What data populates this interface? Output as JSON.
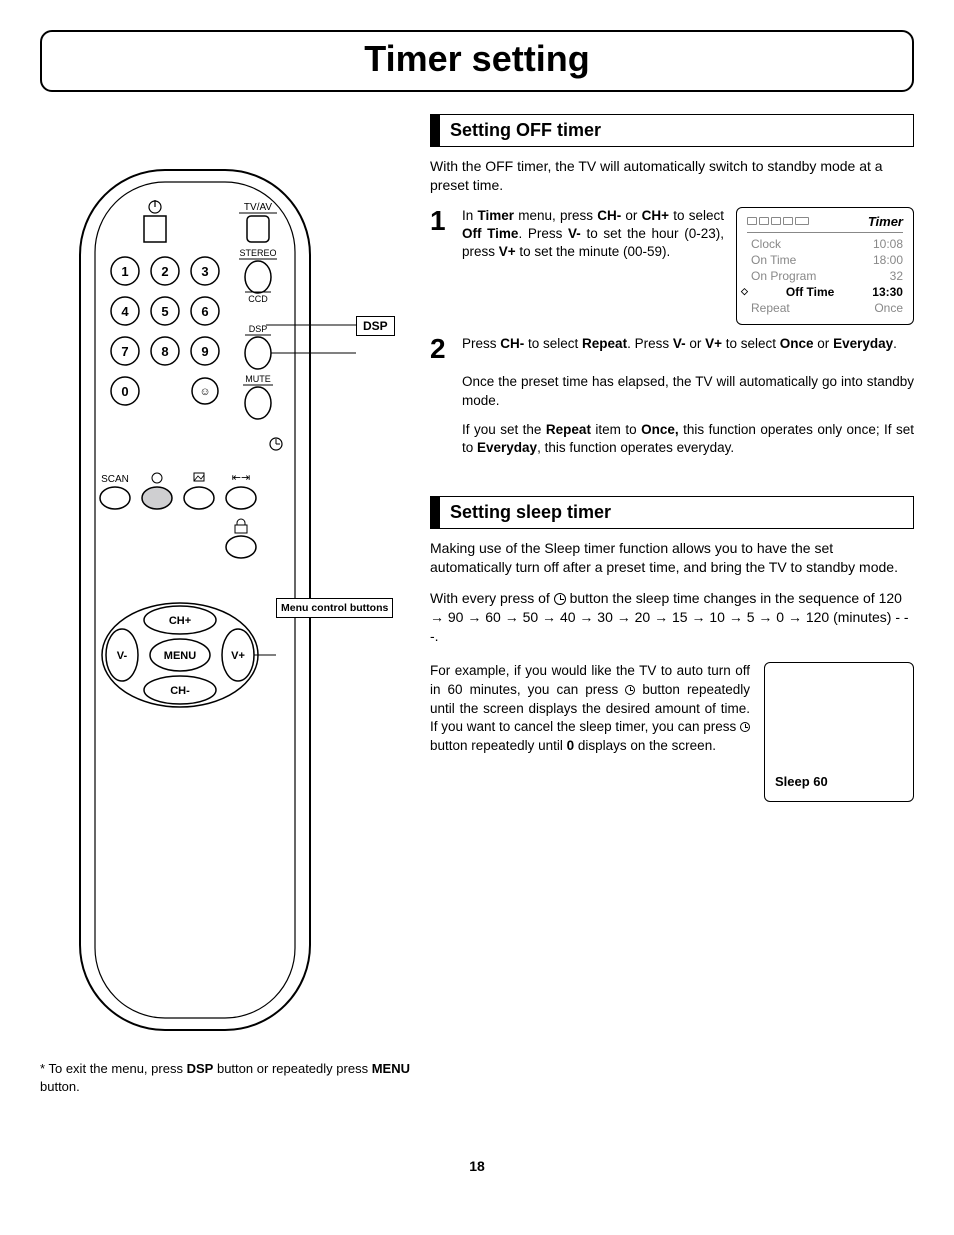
{
  "page_title": "Timer setting",
  "page_number": "18",
  "remote": {
    "labels": {
      "tv_av": "TV/AV",
      "stereo": "STEREO",
      "ccd": "CCD",
      "dsp": "DSP",
      "mute": "MUTE",
      "scan": "SCAN",
      "ch_plus": "CH+",
      "ch_minus": "CH-",
      "v_plus": "V+",
      "v_minus": "V-",
      "menu": "MENU"
    },
    "numbers": [
      "1",
      "2",
      "3",
      "4",
      "5",
      "6",
      "7",
      "8",
      "9",
      "0"
    ],
    "callouts": {
      "dsp": "DSP",
      "menu_controls": "Menu control buttons"
    }
  },
  "exit_note": {
    "prefix": "* To exit the menu, press ",
    "bold1": "DSP",
    "mid": " button or repeatedly press ",
    "bold2": "MENU",
    "suffix": " button."
  },
  "off_timer": {
    "heading": "Setting OFF timer",
    "intro": "With the OFF timer, the TV will automatically switch to standby mode at a preset time.",
    "step1_parts": [
      "In ",
      "Timer",
      " menu, press ",
      "CH-",
      " or ",
      "CH+",
      " to select ",
      "Off  Time",
      ".\nPress ",
      "V-",
      " to set the hour (0-23), press  ",
      "V+",
      " to set the minute (00-59)."
    ],
    "step2_parts": [
      "Press  ",
      "CH-",
      "  to select ",
      "Repeat",
      ".\nPress ",
      "V-",
      " or ",
      "V+",
      " to select ",
      "Once",
      " or ",
      "Everyday",
      "."
    ],
    "osd": {
      "title": "Timer",
      "rows": [
        {
          "label": "Clock",
          "value": "10:08",
          "selected": false
        },
        {
          "label": "On Time",
          "value": "18:00",
          "selected": false
        },
        {
          "label": "On Program",
          "value": "32",
          "selected": false
        },
        {
          "label": "Off Time",
          "value": "13:30",
          "selected": true
        },
        {
          "label": "Repeat",
          "value": "Once",
          "selected": false
        }
      ]
    },
    "explain1": "Once the preset time has elapsed, the TV will automatically go into standby mode.",
    "explain2_parts": [
      "If you set the ",
      "Repeat",
      " item to ",
      "Once,",
      " this function operates only once; If set to ",
      "Everyday",
      ", this function operates everyday."
    ]
  },
  "sleep_timer": {
    "heading": "Setting sleep timer",
    "intro": "Making use of the Sleep timer function allows you to have the set automatically turn off after a preset time, and bring the TV to standby mode.",
    "sequence_parts": [
      "With every press of ",
      " button the sleep time changes in the sequence of 120 → 90 → 60 → 50 → 40 → 30 → 20 → 15 → 10 → 5 → 0 → 120 (minutes) - - -."
    ],
    "example_parts": [
      "For example, if you would like the TV to auto turn off in 60 minutes, you can press ",
      " button repeatedly until the screen displays the desired amount of time. If you want to cancel the sleep timer, you can press ",
      " button repeatedly until ",
      "0",
      " displays on the screen."
    ],
    "box_label": "Sleep 60"
  },
  "colors": {
    "text": "#000000",
    "muted": "#888888",
    "highlight_fill": "#cfcfd1"
  }
}
